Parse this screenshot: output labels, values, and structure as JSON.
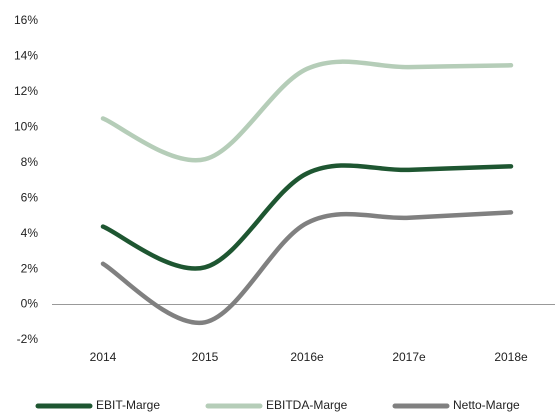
{
  "chart_data": {
    "type": "line",
    "categories": [
      "2014",
      "2015",
      "2016e",
      "2017e",
      "2018e"
    ],
    "series": [
      {
        "name": "EBIT-Marge",
        "color": "#1e5631",
        "values": [
          4.4,
          2.1,
          7.4,
          7.6,
          7.8
        ]
      },
      {
        "name": "EBITDA-Marge",
        "color": "#b5cdb8",
        "values": [
          10.5,
          8.2,
          13.3,
          13.4,
          13.5
        ]
      },
      {
        "name": "Netto-Marge",
        "color": "#808080",
        "values": [
          2.3,
          -1.0,
          4.6,
          4.9,
          5.2
        ]
      }
    ],
    "ylim": [
      -2,
      16
    ],
    "yticks": [
      {
        "value": -2,
        "label": "-2%"
      },
      {
        "value": 0,
        "label": "0%"
      },
      {
        "value": 2,
        "label": "2%"
      },
      {
        "value": 4,
        "label": "4%"
      },
      {
        "value": 6,
        "label": "6%"
      },
      {
        "value": 8,
        "label": "8%"
      },
      {
        "value": 10,
        "label": "10%"
      },
      {
        "value": 12,
        "label": "12%"
      },
      {
        "value": 14,
        "label": "14%"
      },
      {
        "value": 16,
        "label": "16%"
      }
    ],
    "grid": false,
    "smooth": true,
    "legend": "bottom"
  }
}
